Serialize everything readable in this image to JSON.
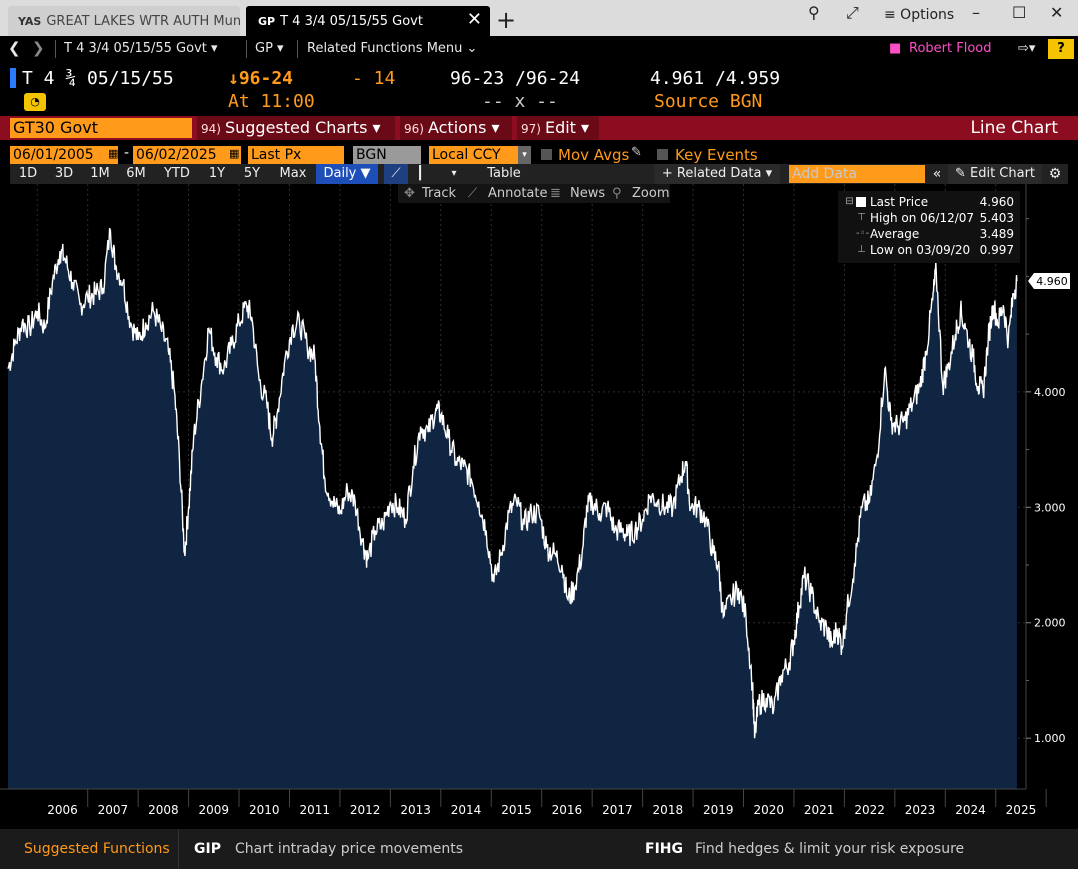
{
  "tabs": {
    "inactive_code": "YAS",
    "inactive_label": "GREAT LAKES WTR AUTH Muni",
    "active_code": "GP",
    "active_label": "T 4 3/4 05/15/55 Govt"
  },
  "window": {
    "options_label": "≡ Options"
  },
  "nav": {
    "security": "T 4 3/4 05/15/55 Govt ▾",
    "function": "GP ▾",
    "related": "Related Functions Menu ⌄",
    "user": "Robert Flood",
    "help": "?"
  },
  "quote": {
    "security": "T 4 ¾ 05/15/55",
    "last": "↓96-24",
    "change": "- 14",
    "bid_ask": "96-23 /96-24",
    "yields": "4.961 /4.959",
    "time": "At 11:00",
    "size": "-- x --",
    "source": "Source BGN"
  },
  "menubar": {
    "ticker": "GT30 Govt",
    "suggested_num": "94)",
    "suggested": "Suggested Charts ▾",
    "actions_num": "96)",
    "actions": "Actions ▾",
    "edit_num": "97)",
    "edit": "Edit ▾",
    "chart_type_label": "Line Chart"
  },
  "controls": {
    "start_date": "06/01/2005",
    "end_date": "06/02/2025",
    "field": "Last Px",
    "source": "BGN",
    "currency": "Local CCY",
    "mov_avgs": "Mov Avgs",
    "key_events": "Key Events"
  },
  "ranges": {
    "items": [
      "1D",
      "3D",
      "1M",
      "6M",
      "YTD",
      "1Y",
      "5Y",
      "Max"
    ],
    "frequency": "Daily ▼",
    "table": "Table",
    "related_data": "+ Related Data ▾",
    "add_data_placeholder": "Add Data",
    "edit_chart": "✎ Edit Chart"
  },
  "tools": {
    "track": "Track",
    "annotate": "Annotate",
    "news": "News",
    "zoom": "Zoom"
  },
  "legend": {
    "last_label": "Last Price",
    "last_value": "4.960",
    "high_label": "High on 06/12/07",
    "high_value": "5.403",
    "avg_label": "Average",
    "avg_value": "3.489",
    "low_label": "Low on 03/09/20",
    "low_value": "0.997"
  },
  "footer": {
    "suggested": "Suggested Functions",
    "f1_code": "GIP",
    "f1_desc": "Chart intraday price movements",
    "f2_code": "FIHG",
    "f2_desc": "Find hedges & limit your risk exposure"
  },
  "colors": {
    "accent_orange": "#ff9a1a",
    "menubar_red": "#8b0d1f",
    "area_fill": "#0f2542",
    "line": "#ffffff"
  },
  "chart_data": {
    "type": "area",
    "x_label_years": [
      "2006",
      "2007",
      "2008",
      "2009",
      "2010",
      "2011",
      "2012",
      "2013",
      "2014",
      "2015",
      "2016",
      "2017",
      "2018",
      "2019",
      "2020",
      "2021",
      "2022",
      "2023",
      "2024",
      "2025"
    ],
    "y_ticks": [
      "1.000",
      "2.000",
      "3.000",
      "4.000"
    ],
    "ylim": [
      0.56,
      5.8
    ],
    "xlim": [
      2005.42,
      2025.6
    ],
    "last_price_label": "4.960",
    "series": [
      {
        "points": [
          [
            2005.42,
            4.2
          ],
          [
            2005.55,
            4.4
          ],
          [
            2005.7,
            4.6
          ],
          [
            2005.85,
            4.55
          ],
          [
            2006.0,
            4.7
          ],
          [
            2006.15,
            4.55
          ],
          [
            2006.3,
            4.95
          ],
          [
            2006.45,
            5.22
          ],
          [
            2006.55,
            5.15
          ],
          [
            2006.7,
            4.95
          ],
          [
            2006.85,
            4.75
          ],
          [
            2007.0,
            4.82
          ],
          [
            2007.15,
            4.85
          ],
          [
            2007.3,
            4.9
          ],
          [
            2007.45,
            5.4
          ],
          [
            2007.55,
            5.1
          ],
          [
            2007.7,
            4.95
          ],
          [
            2007.85,
            4.6
          ],
          [
            2008.0,
            4.45
          ],
          [
            2008.15,
            4.6
          ],
          [
            2008.3,
            4.7
          ],
          [
            2008.45,
            4.55
          ],
          [
            2008.6,
            4.35
          ],
          [
            2008.72,
            4.0
          ],
          [
            2008.82,
            3.4
          ],
          [
            2008.92,
            2.6
          ],
          [
            2009.0,
            3.0
          ],
          [
            2009.1,
            3.6
          ],
          [
            2009.25,
            4.05
          ],
          [
            2009.4,
            4.55
          ],
          [
            2009.55,
            4.3
          ],
          [
            2009.7,
            4.2
          ],
          [
            2009.85,
            4.4
          ],
          [
            2010.0,
            4.6
          ],
          [
            2010.15,
            4.75
          ],
          [
            2010.25,
            4.65
          ],
          [
            2010.4,
            4.1
          ],
          [
            2010.55,
            3.9
          ],
          [
            2010.65,
            3.6
          ],
          [
            2010.75,
            3.8
          ],
          [
            2010.9,
            4.25
          ],
          [
            2011.05,
            4.55
          ],
          [
            2011.2,
            4.6
          ],
          [
            2011.35,
            4.4
          ],
          [
            2011.5,
            4.3
          ],
          [
            2011.6,
            3.7
          ],
          [
            2011.7,
            3.25
          ],
          [
            2011.85,
            3.05
          ],
          [
            2012.0,
            2.95
          ],
          [
            2012.15,
            3.15
          ],
          [
            2012.3,
            3.05
          ],
          [
            2012.45,
            2.7
          ],
          [
            2012.55,
            2.55
          ],
          [
            2012.7,
            2.8
          ],
          [
            2012.85,
            2.85
          ],
          [
            2013.0,
            3.05
          ],
          [
            2013.15,
            3.0
          ],
          [
            2013.3,
            2.9
          ],
          [
            2013.45,
            3.35
          ],
          [
            2013.6,
            3.7
          ],
          [
            2013.75,
            3.65
          ],
          [
            2013.9,
            3.85
          ],
          [
            2014.0,
            3.8
          ],
          [
            2014.15,
            3.6
          ],
          [
            2014.3,
            3.4
          ],
          [
            2014.45,
            3.35
          ],
          [
            2014.6,
            3.25
          ],
          [
            2014.75,
            3.05
          ],
          [
            2014.9,
            2.8
          ],
          [
            2015.05,
            2.35
          ],
          [
            2015.2,
            2.6
          ],
          [
            2015.35,
            2.95
          ],
          [
            2015.5,
            3.05
          ],
          [
            2015.65,
            2.85
          ],
          [
            2015.8,
            2.95
          ],
          [
            2015.95,
            2.95
          ],
          [
            2016.1,
            2.65
          ],
          [
            2016.25,
            2.6
          ],
          [
            2016.4,
            2.5
          ],
          [
            2016.52,
            2.2
          ],
          [
            2016.65,
            2.3
          ],
          [
            2016.8,
            2.6
          ],
          [
            2016.9,
            3.0
          ],
          [
            2017.0,
            3.05
          ],
          [
            2017.15,
            2.95
          ],
          [
            2017.3,
            3.0
          ],
          [
            2017.45,
            2.8
          ],
          [
            2017.6,
            2.8
          ],
          [
            2017.7,
            2.75
          ],
          [
            2017.85,
            2.8
          ],
          [
            2018.0,
            2.9
          ],
          [
            2018.15,
            3.1
          ],
          [
            2018.3,
            3.05
          ],
          [
            2018.45,
            3.0
          ],
          [
            2018.6,
            3.0
          ],
          [
            2018.75,
            3.25
          ],
          [
            2018.85,
            3.4
          ],
          [
            2018.95,
            3.0
          ],
          [
            2019.1,
            3.0
          ],
          [
            2019.25,
            2.9
          ],
          [
            2019.4,
            2.6
          ],
          [
            2019.5,
            2.5
          ],
          [
            2019.6,
            2.05
          ],
          [
            2019.75,
            2.2
          ],
          [
            2019.9,
            2.3
          ],
          [
            2020.05,
            2.05
          ],
          [
            2020.18,
            1.45
          ],
          [
            2020.22,
            1.0
          ],
          [
            2020.3,
            1.3
          ],
          [
            2020.45,
            1.35
          ],
          [
            2020.6,
            1.25
          ],
          [
            2020.75,
            1.55
          ],
          [
            2020.9,
            1.65
          ],
          [
            2021.0,
            1.85
          ],
          [
            2021.1,
            2.15
          ],
          [
            2021.2,
            2.4
          ],
          [
            2021.35,
            2.25
          ],
          [
            2021.5,
            2.0
          ],
          [
            2021.65,
            1.95
          ],
          [
            2021.75,
            1.8
          ],
          [
            2021.85,
            1.95
          ],
          [
            2021.95,
            1.8
          ],
          [
            2022.05,
            2.1
          ],
          [
            2022.2,
            2.5
          ],
          [
            2022.35,
            3.0
          ],
          [
            2022.5,
            3.05
          ],
          [
            2022.65,
            3.45
          ],
          [
            2022.8,
            4.2
          ],
          [
            2022.92,
            3.75
          ],
          [
            2023.05,
            3.7
          ],
          [
            2023.2,
            3.75
          ],
          [
            2023.35,
            3.9
          ],
          [
            2023.5,
            4.05
          ],
          [
            2023.62,
            4.35
          ],
          [
            2023.75,
            4.8
          ],
          [
            2023.82,
            5.05
          ],
          [
            2023.95,
            4.05
          ],
          [
            2024.05,
            4.2
          ],
          [
            2024.2,
            4.5
          ],
          [
            2024.3,
            4.7
          ],
          [
            2024.4,
            4.55
          ],
          [
            2024.55,
            4.3
          ],
          [
            2024.65,
            4.05
          ],
          [
            2024.75,
            4.0
          ],
          [
            2024.85,
            4.45
          ],
          [
            2024.95,
            4.75
          ],
          [
            2025.05,
            4.6
          ],
          [
            2025.15,
            4.75
          ],
          [
            2025.25,
            4.45
          ],
          [
            2025.35,
            4.85
          ],
          [
            2025.42,
            4.96
          ]
        ]
      }
    ]
  }
}
